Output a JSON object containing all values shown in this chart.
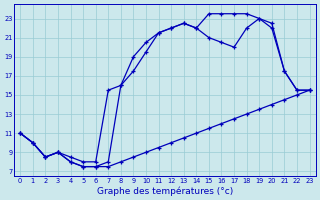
{
  "xlabel": "Graphe des températures (°c)",
  "background_color": "#cce8ec",
  "line_color": "#0000bb",
  "grid_color": "#99ccd4",
  "xlim": [
    -0.5,
    23.5
  ],
  "ylim": [
    6.5,
    24.5
  ],
  "yticks": [
    7,
    9,
    11,
    13,
    15,
    17,
    19,
    21,
    23
  ],
  "xticks": [
    0,
    1,
    2,
    3,
    4,
    5,
    6,
    7,
    8,
    9,
    10,
    11,
    12,
    13,
    14,
    15,
    16,
    17,
    18,
    19,
    20,
    21,
    22,
    23
  ],
  "line1_x": [
    0,
    1,
    2,
    3,
    4,
    5,
    6,
    7,
    8,
    9,
    10,
    11,
    12,
    13,
    14,
    15,
    16,
    17,
    18,
    19,
    20,
    21,
    22,
    23
  ],
  "line1_y": [
    11,
    10,
    8.5,
    9,
    8,
    7.5,
    7.5,
    7.5,
    8,
    8.5,
    9,
    9.5,
    10,
    10.5,
    11,
    11.5,
    12,
    12.5,
    13,
    13.5,
    14,
    14.5,
    15,
    15.5
  ],
  "line2_x": [
    0,
    1,
    2,
    3,
    4,
    5,
    6,
    7,
    8,
    9,
    10,
    11,
    12,
    13,
    14,
    15,
    16,
    17,
    18,
    19,
    20,
    21,
    22,
    23
  ],
  "line2_y": [
    11,
    10,
    8.5,
    9,
    8,
    7.5,
    7.5,
    8,
    16,
    19,
    20.5,
    21.5,
    22,
    22.5,
    22,
    21,
    20.5,
    20,
    22,
    23,
    22,
    17.5,
    15.5,
    15.5
  ],
  "line3_x": [
    0,
    1,
    2,
    3,
    4,
    5,
    6,
    7,
    8,
    9,
    10,
    11,
    12,
    13,
    14,
    15,
    16,
    17,
    18,
    19,
    20,
    21,
    22,
    23
  ],
  "line3_y": [
    11,
    10,
    8.5,
    9,
    8.5,
    8,
    8,
    15.5,
    16,
    17.5,
    19.5,
    21.5,
    22,
    22.5,
    22,
    23.5,
    23.5,
    23.5,
    23.5,
    23,
    22.5,
    17.5,
    15.5,
    15.5
  ]
}
